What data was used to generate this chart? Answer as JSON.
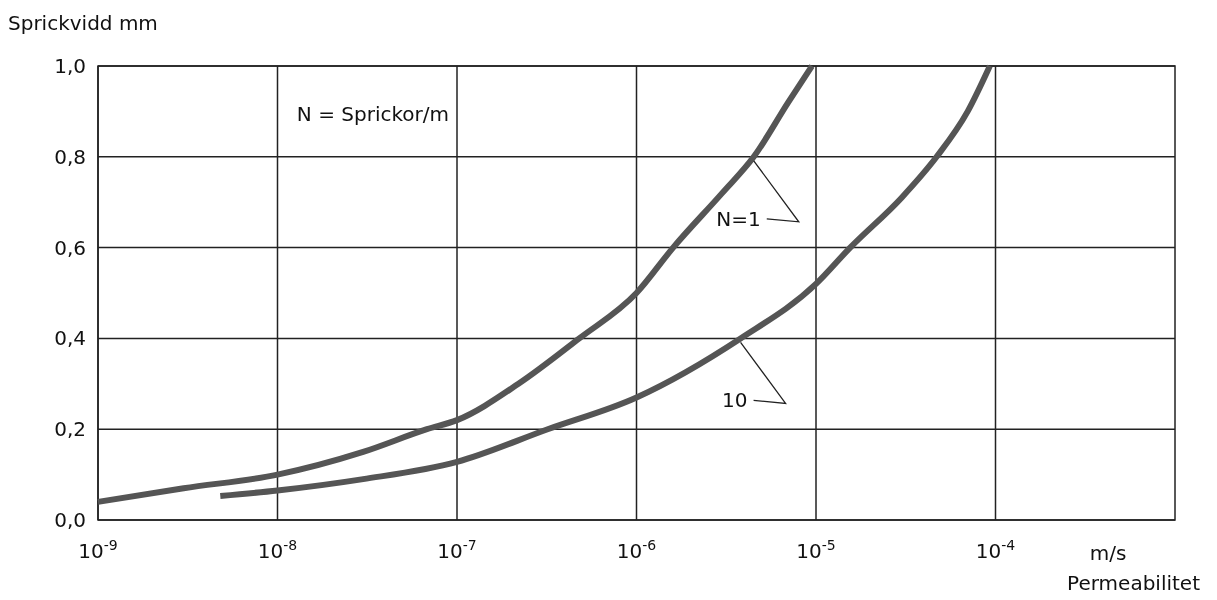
{
  "chart_data": {
    "type": "line",
    "ylabel": "Sprickvidd mm",
    "xlabel": "Permeabilitet",
    "annotations": [
      "N = Sprickor/m",
      "m/s"
    ],
    "log": "x",
    "xlim": [
      1e-09,
      0.001
    ],
    "ylim": [
      0,
      1
    ],
    "xticks": [
      {
        "value": 1e-09,
        "label": "10$^{-9}$"
      },
      {
        "value": 1e-08,
        "label": "10$^{-8}$"
      },
      {
        "value": 1e-07,
        "label": "10$^{-7}$"
      },
      {
        "value": 1e-06,
        "label": "10$^{-6}$"
      },
      {
        "value": 1e-05,
        "label": "10$^{-5}$"
      },
      {
        "value": 0.0001,
        "label": "10$^{-4}$"
      }
    ],
    "yticks": [
      {
        "value": 0,
        "label": "0,0"
      },
      {
        "value": 0.2,
        "label": "0,2"
      },
      {
        "value": 0.4,
        "label": "0,4"
      },
      {
        "value": 0.6,
        "label": "0,6"
      },
      {
        "value": 0.8,
        "label": "0,8"
      },
      {
        "value": 1,
        "label": "1,0"
      }
    ],
    "grid": true,
    "line_style": "solid",
    "marker": "none",
    "series": [
      {
        "name": "N=1",
        "color": "#555555",
        "x": [
          1e-09,
          3e-09,
          1e-08,
          3e-08,
          6.8e-08,
          1e-07,
          2.2e-07,
          4.8e-07,
          1e-06,
          1.6e-06,
          3e-06,
          4.5e-06,
          7e-06,
          9.5e-06
        ],
        "values": [
          0.04,
          0.07,
          0.1,
          0.15,
          0.2,
          0.22,
          0.3,
          0.4,
          0.5,
          0.6,
          0.72,
          0.8,
          0.92,
          1.0
        ]
      },
      {
        "name": "10",
        "color": "#555555",
        "x": [
          4.8e-09,
          1e-08,
          3e-08,
          1e-07,
          3.2e-07,
          1e-06,
          3.8e-06,
          1e-05,
          1.55e-05,
          3e-05,
          4.7e-05,
          7e-05,
          9.3e-05
        ],
        "values": [
          0.053,
          0.065,
          0.09,
          0.128,
          0.2,
          0.27,
          0.4,
          0.52,
          0.6,
          0.71,
          0.8,
          0.9,
          1.0
        ]
      }
    ]
  }
}
